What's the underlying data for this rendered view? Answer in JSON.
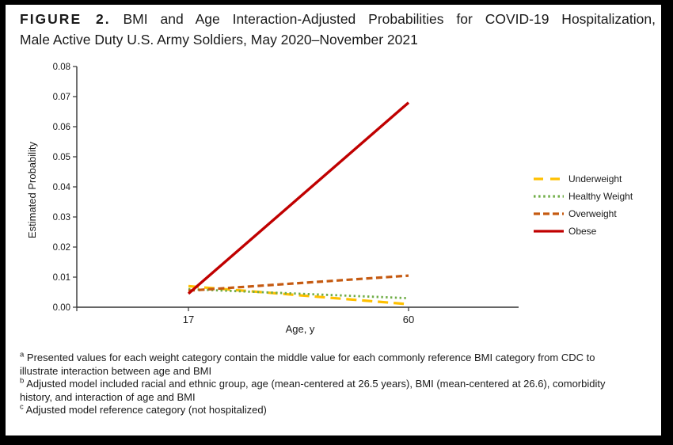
{
  "title": {
    "label": "FIGURE 2.",
    "line1": "BMI and Age Interaction-Adjusted Probabilities for COVID-19 Hospitalization,",
    "line2": "Male Active Duty U.S. Army Soldiers, May 2020–November 2021"
  },
  "chart_data": {
    "type": "line",
    "x": [
      17,
      60
    ],
    "xlabel": "Age, y",
    "ylabel": "Estimated Probability",
    "ylim": [
      0,
      0.08
    ],
    "ytick_step": 0.01,
    "ytick_labels": [
      "0.00",
      "0.01",
      "0.02",
      "0.03",
      "0.04",
      "0.05",
      "0.06",
      "0.07",
      "0.08"
    ],
    "xtick_labels": [
      "17",
      "60"
    ],
    "grid": false,
    "legend_position": "right",
    "series": [
      {
        "name": "Underweight",
        "color": "#FFC000",
        "dash": "long-dash",
        "values": [
          0.007,
          0.001
        ]
      },
      {
        "name": "Healthy Weight",
        "color": "#70AD47",
        "dash": "dot",
        "values": [
          0.006,
          0.003
        ]
      },
      {
        "name": "Overweight",
        "color": "#C55A11",
        "dash": "dash",
        "values": [
          0.0055,
          0.0105
        ]
      },
      {
        "name": "Obese",
        "color": "#C00000",
        "dash": "solid",
        "values": [
          0.0045,
          0.068
        ]
      }
    ]
  },
  "footnotes": [
    {
      "marker": "a",
      "text": "Presented values for each weight category contain the middle value for each commonly reference BMI category from CDC to illustrate interaction between age and BMI"
    },
    {
      "marker": "b",
      "text": "Adjusted model included racial and ethnic group, age (mean-centered at 26.5 years), BMI (mean-centered at 26.6), comorbidity history, and interaction of age and BMI"
    },
    {
      "marker": "c",
      "text": "Adjusted model reference category (not hospitalized)"
    }
  ]
}
